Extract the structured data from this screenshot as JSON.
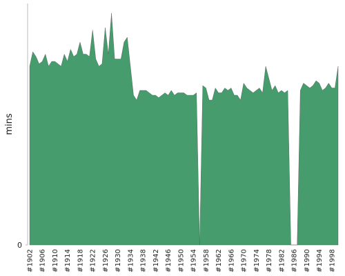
{
  "chart_data": {
    "type": "area",
    "y_label": "mins",
    "color": "#469c6c",
    "categories": [
      "#1902",
      null,
      null,
      null,
      "#1906",
      null,
      null,
      null,
      "#1910",
      null,
      null,
      null,
      "#1914",
      null,
      null,
      null,
      "#1918",
      null,
      null,
      null,
      "#1922",
      null,
      null,
      null,
      "#1926",
      null,
      null,
      null,
      "#1930",
      null,
      null,
      null,
      "#1934",
      null,
      null,
      null,
      "#1938",
      null,
      null,
      null,
      "#1942",
      null,
      null,
      null,
      "#1946",
      null,
      null,
      null,
      "#1950",
      null,
      null,
      null,
      "#1954",
      null,
      null,
      null,
      "#1958",
      null,
      null,
      null,
      "#1962",
      null,
      null,
      null,
      "#1966",
      null,
      null,
      null,
      "#1970",
      null,
      null,
      null,
      "#1974",
      null,
      null,
      null,
      "#1978",
      null,
      null,
      null,
      "#1982",
      null,
      null,
      null,
      "#1986",
      null,
      null,
      null,
      "#1990",
      null,
      null,
      null,
      "#1994",
      null,
      null,
      null,
      "#1998",
      null,
      null
    ],
    "values": [
      74,
      80,
      78,
      75,
      76,
      79,
      74,
      76,
      76,
      75,
      74,
      79,
      76,
      81,
      78,
      79,
      84,
      79,
      79,
      78,
      89,
      77,
      74,
      75,
      90,
      79,
      96,
      77,
      77,
      77,
      84,
      86,
      74,
      62,
      60,
      64,
      64,
      64,
      63,
      62,
      62,
      61,
      62,
      63,
      62,
      64,
      62,
      63,
      63,
      63,
      62,
      62,
      62,
      63,
      0,
      66,
      65,
      60,
      60,
      65,
      63,
      63,
      65,
      64,
      65,
      62,
      62,
      60,
      67,
      65,
      64,
      63,
      64,
      65,
      63,
      74,
      69,
      64,
      66,
      63,
      64,
      63,
      64,
      0,
      0,
      0,
      64,
      67,
      66,
      65,
      66,
      68,
      67,
      64,
      65,
      67,
      65,
      65,
      74
    ],
    "ylim": [
      0,
      100
    ],
    "yticks": [
      0
    ]
  }
}
